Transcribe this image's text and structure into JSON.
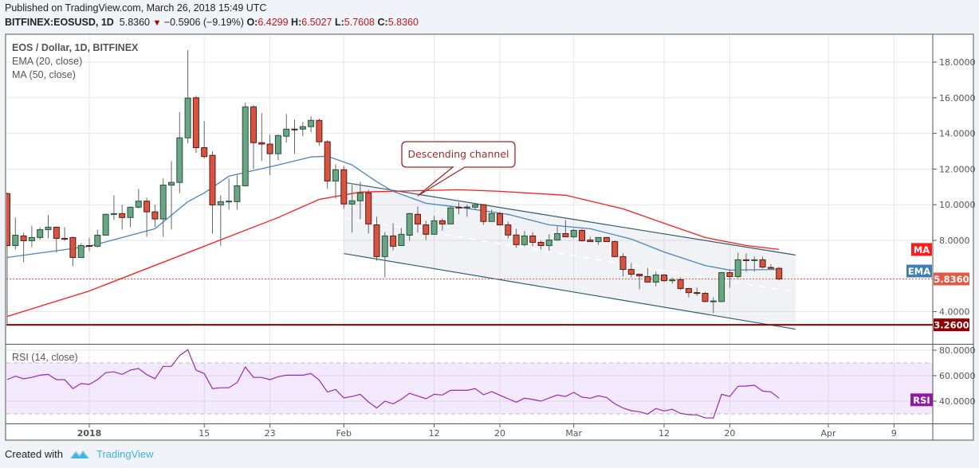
{
  "header": {
    "published": "Published on TradingView.com, March 26, 2018 15:49 UTC",
    "symbol": "BITFINEX:EOSUSD, 1D",
    "last": "5.8360",
    "direction_icon": "down-triangle-icon",
    "change": "−0.5906 (−9.19%)",
    "o_label": "O:",
    "o": "6.4299",
    "h_label": "H:",
    "h": "6.5027",
    "l_label": "L:",
    "l": "5.7608",
    "c_label": "C:",
    "c": "5.8360"
  },
  "legend": {
    "title": "EOS / Dollar, 1D, BITFINEX",
    "ema": "EMA (20, close)",
    "ma": "MA (50, close)",
    "rsi": "RSI (14, close)"
  },
  "footer": {
    "created_with": "Created with",
    "brand": "TradingView"
  },
  "colors": {
    "up": "#6ba583",
    "up_border": "#225437",
    "down": "#d75442",
    "down_border": "#5b1a13",
    "ema": "#4a86c0",
    "ma": "#ff1a1a",
    "rsi": "#9c27b0",
    "support": "#8b0000",
    "channel": "#2f5d6e",
    "annotation": "#9c2a2a",
    "price_label": "#e05a46"
  },
  "chart_data": [
    {
      "type": "candlestick",
      "title": "EOS / Dollar, 1D, BITFINEX",
      "price_axis_ticks": [
        "4.0000",
        "8.0000",
        "10.0000",
        "12.0000",
        "14.0000",
        "16.0000",
        "18.0000"
      ],
      "ylim": [
        2.8,
        19.6
      ],
      "grid": true,
      "date_ticks": [
        {
          "date": "2018-01-01",
          "label": "2018"
        },
        {
          "date": "2018-01-15",
          "label": "15"
        },
        {
          "date": "2018-01-23",
          "label": "23"
        },
        {
          "date": "2018-02-01",
          "label": "Feb"
        },
        {
          "date": "2018-02-12",
          "label": "12"
        },
        {
          "date": "2018-02-20",
          "label": "20"
        },
        {
          "date": "2018-03-01",
          "label": "Mar"
        },
        {
          "date": "2018-03-12",
          "label": "12"
        },
        {
          "date": "2018-03-20",
          "label": "20"
        },
        {
          "date": "2018-04-01",
          "label": "Apr"
        },
        {
          "date": "2018-04-09",
          "label": "9"
        }
      ],
      "candles_columns": [
        "date",
        "open",
        "high",
        "low",
        "close"
      ],
      "candles": [
        [
          "2017-12-22",
          10.62,
          10.7,
          3.2,
          7.71
        ],
        [
          "2017-12-23",
          7.71,
          9.28,
          7.49,
          8.29
        ],
        [
          "2017-12-24",
          8.25,
          8.43,
          6.77,
          7.98
        ],
        [
          "2017-12-25",
          7.98,
          8.83,
          7.62,
          8.16
        ],
        [
          "2017-12-26",
          8.16,
          8.74,
          8.03,
          8.6
        ],
        [
          "2017-12-27",
          8.6,
          9.42,
          8.11,
          8.74
        ],
        [
          "2017-12-28",
          8.74,
          8.78,
          7.31,
          8.11
        ],
        [
          "2017-12-29",
          8.11,
          8.74,
          7.98,
          8.07
        ],
        [
          "2017-12-30",
          8.16,
          8.2,
          6.55,
          7.04
        ],
        [
          "2017-12-31",
          7.04,
          7.85,
          7.04,
          7.71
        ],
        [
          "2018-01-01",
          7.71,
          8.15,
          7.4,
          7.67
        ],
        [
          "2018-01-02",
          7.67,
          8.6,
          7.6,
          8.29
        ],
        [
          "2018-01-03",
          8.29,
          9.5,
          8.29,
          9.46
        ],
        [
          "2018-01-04",
          9.46,
          10.53,
          9.14,
          9.5
        ],
        [
          "2018-01-05",
          9.5,
          10.0,
          8.6,
          9.28
        ],
        [
          "2018-01-06",
          9.28,
          9.9,
          8.74,
          9.86
        ],
        [
          "2018-01-07",
          9.86,
          10.89,
          9.8,
          10.2
        ],
        [
          "2018-01-08",
          10.2,
          10.4,
          8.2,
          9.6
        ],
        [
          "2018-01-09",
          9.6,
          10.0,
          8.74,
          9.2
        ],
        [
          "2018-01-10",
          9.2,
          11.47,
          8.2,
          11.1
        ],
        [
          "2018-01-11",
          11.1,
          12.45,
          8.6,
          11.25
        ],
        [
          "2018-01-12",
          11.25,
          15.2,
          10.65,
          13.75
        ],
        [
          "2018-01-13",
          13.75,
          18.67,
          13.44,
          15.98
        ],
        [
          "2018-01-14",
          16.0,
          16.1,
          12.9,
          13.2
        ],
        [
          "2018-01-15",
          13.2,
          14.69,
          12.6,
          12.7
        ],
        [
          "2018-01-16",
          12.77,
          12.99,
          8.38,
          9.99
        ],
        [
          "2018-01-17",
          9.99,
          10.53,
          7.68,
          10.17
        ],
        [
          "2018-01-18",
          10.17,
          11.47,
          9.72,
          10.2
        ],
        [
          "2018-01-19",
          10.17,
          11.65,
          9.72,
          11.06
        ],
        [
          "2018-01-20",
          11.06,
          15.72,
          11.06,
          15.49
        ],
        [
          "2018-01-21",
          15.49,
          15.6,
          12.0,
          13.48
        ],
        [
          "2018-01-22",
          13.48,
          15.14,
          12.45,
          13.4
        ],
        [
          "2018-01-23",
          13.4,
          13.93,
          11.65,
          12.86
        ],
        [
          "2018-01-24",
          12.86,
          13.93,
          12.5,
          13.88
        ],
        [
          "2018-01-25",
          13.84,
          15.09,
          13.48,
          14.24
        ],
        [
          "2018-01-26",
          14.24,
          14.78,
          12.86,
          14.2
        ],
        [
          "2018-01-27",
          14.24,
          14.65,
          13.84,
          14.38
        ],
        [
          "2018-01-28",
          14.38,
          14.96,
          14.06,
          14.73
        ],
        [
          "2018-01-29",
          14.73,
          14.83,
          13.3,
          13.53
        ],
        [
          "2018-01-30",
          13.53,
          13.62,
          10.89,
          11.33
        ],
        [
          "2018-01-31",
          11.33,
          12.27,
          10.35,
          11.96
        ],
        [
          "2018-02-01",
          11.96,
          12.18,
          9.77,
          10.04
        ],
        [
          "2018-02-02",
          10.04,
          11.11,
          8.43,
          10.22
        ],
        [
          "2018-02-03",
          10.22,
          11.29,
          9.19,
          10.66
        ],
        [
          "2018-02-04",
          10.66,
          10.84,
          8.38,
          8.92
        ],
        [
          "2018-02-05",
          8.87,
          9.32,
          6.86,
          7.09
        ],
        [
          "2018-02-06",
          7.09,
          8.47,
          5.92,
          8.25
        ],
        [
          "2018-02-07",
          8.25,
          8.96,
          7.44,
          7.67
        ],
        [
          "2018-02-08",
          7.71,
          8.7,
          7.71,
          8.34
        ],
        [
          "2018-02-09",
          8.29,
          9.55,
          7.98,
          9.5
        ],
        [
          "2018-02-10",
          9.46,
          9.9,
          8.43,
          8.92
        ],
        [
          "2018-02-11",
          8.87,
          9.1,
          8.02,
          8.34
        ],
        [
          "2018-02-12",
          8.34,
          9.37,
          8.34,
          9.1
        ],
        [
          "2018-02-13",
          9.1,
          9.23,
          8.56,
          8.92
        ],
        [
          "2018-02-14",
          8.92,
          9.95,
          8.92,
          9.82
        ],
        [
          "2018-02-15",
          9.86,
          10.13,
          9.46,
          9.84
        ],
        [
          "2018-02-16",
          9.86,
          10.0,
          9.32,
          9.87
        ],
        [
          "2018-02-17",
          9.86,
          10.1,
          9.73,
          10.0
        ],
        [
          "2018-02-18",
          10.0,
          10.04,
          8.87,
          9.06
        ],
        [
          "2018-02-19",
          9.06,
          9.73,
          9.06,
          9.5
        ],
        [
          "2018-02-20",
          9.5,
          9.6,
          8.83,
          8.87
        ],
        [
          "2018-02-21",
          8.87,
          9.05,
          8.11,
          8.3
        ],
        [
          "2018-02-22",
          8.3,
          8.65,
          7.58,
          7.76
        ],
        [
          "2018-02-23",
          7.76,
          8.52,
          7.67,
          8.25
        ],
        [
          "2018-02-24",
          8.25,
          8.47,
          7.67,
          7.89
        ],
        [
          "2018-02-25",
          7.89,
          7.98,
          7.49,
          7.71
        ],
        [
          "2018-02-26",
          7.71,
          8.34,
          7.4,
          8.02
        ],
        [
          "2018-02-27",
          8.02,
          8.79,
          7.98,
          8.38
        ],
        [
          "2018-02-28",
          8.38,
          9.14,
          8.2,
          8.2
        ],
        [
          "2018-03-01",
          8.2,
          8.65,
          8.11,
          8.56
        ],
        [
          "2018-03-02",
          8.56,
          8.65,
          7.93,
          7.98
        ],
        [
          "2018-03-03",
          8.02,
          8.2,
          7.93,
          7.93
        ],
        [
          "2018-03-04",
          7.93,
          8.16,
          7.76,
          8.16
        ],
        [
          "2018-03-05",
          8.16,
          8.2,
          7.93,
          7.93
        ],
        [
          "2018-03-06",
          7.93,
          8.0,
          7.04,
          7.09
        ],
        [
          "2018-03-07",
          7.09,
          7.27,
          5.97,
          6.37
        ],
        [
          "2018-03-08",
          6.37,
          6.73,
          5.92,
          6.1
        ],
        [
          "2018-03-09",
          6.1,
          6.15,
          5.25,
          6.01
        ],
        [
          "2018-03-10",
          5.97,
          6.46,
          5.66,
          5.66
        ],
        [
          "2018-03-11",
          5.66,
          6.24,
          5.43,
          6.06
        ],
        [
          "2018-03-12",
          6.06,
          6.1,
          5.66,
          5.74
        ],
        [
          "2018-03-13",
          5.74,
          5.92,
          5.57,
          5.78
        ],
        [
          "2018-03-14",
          5.79,
          5.92,
          5.21,
          5.3
        ],
        [
          "2018-03-15",
          5.3,
          5.3,
          4.8,
          5.07
        ],
        [
          "2018-03-16",
          5.07,
          5.34,
          4.89,
          5.03
        ],
        [
          "2018-03-17",
          5.03,
          5.1,
          4.53,
          4.57
        ],
        [
          "2018-03-18",
          4.57,
          4.8,
          3.92,
          4.6
        ],
        [
          "2018-03-19",
          4.57,
          6.24,
          4.53,
          6.19
        ],
        [
          "2018-03-20",
          6.19,
          6.37,
          5.34,
          5.97
        ],
        [
          "2018-03-21",
          5.97,
          7.31,
          5.88,
          6.91
        ],
        [
          "2018-03-22",
          6.91,
          7.27,
          6.24,
          6.87
        ],
        [
          "2018-03-23",
          6.87,
          7.09,
          6.24,
          6.91
        ],
        [
          "2018-03-24",
          6.91,
          7.09,
          6.42,
          6.5
        ],
        [
          "2018-03-25",
          6.48,
          6.66,
          6.42,
          6.43
        ],
        [
          "2018-03-26",
          6.4299,
          6.5027,
          5.7608,
          5.836
        ]
      ],
      "ema20": [
        [
          "2017-12-22",
          7.04
        ],
        [
          "2018-01-01",
          7.67
        ],
        [
          "2018-01-09",
          8.65
        ],
        [
          "2018-01-13",
          10.17
        ],
        [
          "2018-01-15",
          10.66
        ],
        [
          "2018-01-18",
          11.6
        ],
        [
          "2018-01-24",
          12.23
        ],
        [
          "2018-01-28",
          12.68
        ],
        [
          "2018-01-30",
          12.72
        ],
        [
          "2018-02-02",
          12.23
        ],
        [
          "2018-02-05",
          11.29
        ],
        [
          "2018-02-07",
          10.75
        ],
        [
          "2018-02-11",
          10.08
        ],
        [
          "2018-02-15",
          9.86
        ],
        [
          "2018-02-21",
          9.46
        ],
        [
          "2018-02-26",
          8.87
        ],
        [
          "2018-03-03",
          8.65
        ],
        [
          "2018-03-08",
          8.07
        ],
        [
          "2018-03-12",
          7.35
        ],
        [
          "2018-03-17",
          6.59
        ],
        [
          "2018-03-20",
          6.33
        ],
        [
          "2018-03-26",
          6.37
        ]
      ],
      "ma50": [
        [
          "2017-12-22",
          3.73
        ],
        [
          "2018-01-01",
          5.16
        ],
        [
          "2018-01-15",
          7.67
        ],
        [
          "2018-01-24",
          9.28
        ],
        [
          "2018-01-29",
          10.3
        ],
        [
          "2018-02-03",
          10.71
        ],
        [
          "2018-02-15",
          10.84
        ],
        [
          "2018-02-20",
          10.75
        ],
        [
          "2018-02-28",
          10.53
        ],
        [
          "2018-03-07",
          9.77
        ],
        [
          "2018-03-12",
          8.96
        ],
        [
          "2018-03-17",
          8.16
        ],
        [
          "2018-03-22",
          7.71
        ],
        [
          "2018-03-26",
          7.49
        ]
      ],
      "last_price_label": "5.8360",
      "support_level": 3.26,
      "support_label": "3.2600",
      "ma_badge": "MA",
      "ema_badge": "EMA",
      "channel": {
        "upper": [
          [
            "2018-02-01",
            11.25
          ],
          [
            "2018-03-28",
            7.18
          ]
        ],
        "lower": [
          [
            "2018-02-01",
            7.26
          ],
          [
            "2018-03-28",
            3.02
          ]
        ]
      },
      "annotation": {
        "text": "Descending channel",
        "anchor": [
          "2018-02-10",
          10.5
        ]
      }
    },
    {
      "type": "line",
      "title": "RSI (14, close)",
      "ylim": [
        23,
        84
      ],
      "ticks": [
        "40.0000",
        "60.0000",
        "80.0000"
      ],
      "band": [
        30,
        70
      ],
      "badge": "RSI",
      "values": [
        56.9,
        59.6,
        57.5,
        58.7,
        60.4,
        61,
        56.9,
        56.9,
        49.9,
        53.8,
        53.1,
        56.9,
        62.4,
        63,
        61,
        64.4,
        65.6,
        60.8,
        57.6,
        67.3,
        67.3,
        75.8,
        80.4,
        64.4,
        61.7,
        49.9,
        50.5,
        50.5,
        54.6,
        66.8,
        58.7,
        58.6,
        56.9,
        59.2,
        60.4,
        60.4,
        60.4,
        61.7,
        56.5,
        47.1,
        49.2,
        42.5,
        43.7,
        45.4,
        39.4,
        34.6,
        40,
        37.9,
        41.5,
        46.1,
        44,
        41.9,
        45.4,
        44.8,
        48.5,
        48.5,
        48.5,
        49.8,
        45,
        47.5,
        44.6,
        41.9,
        39.2,
        42.3,
        41.3,
        40,
        42.5,
        44.8,
        43.7,
        46.9,
        43.1,
        42.3,
        44.2,
        42.9,
        37.9,
        34.6,
        32.5,
        31.7,
        29.8,
        34.2,
        32.3,
        33.6,
        30.4,
        29.4,
        29.2,
        26.9,
        26.8,
        45.4,
        43.7,
        51.7,
        51.9,
        52.5,
        47.9,
        47.3,
        42.3
      ]
    }
  ]
}
